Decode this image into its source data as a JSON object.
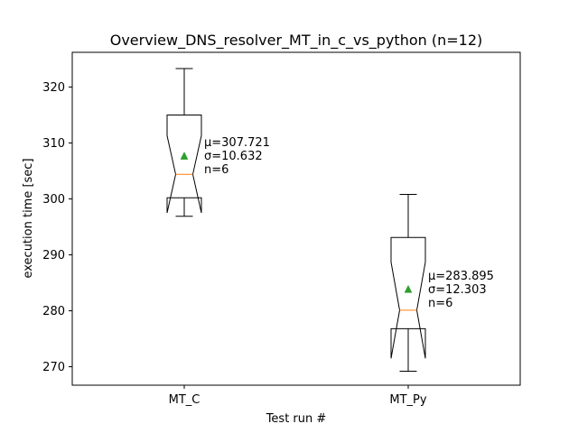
{
  "chart_data": {
    "type": "boxplot",
    "title": "Overview_DNS_resolver_MT_in_c_vs_python (n=12)",
    "xlabel": "Test run #",
    "ylabel": "execution time [sec]",
    "ylim": [
      266.7,
      326.2
    ],
    "yticks": [
      270,
      280,
      290,
      300,
      310,
      320
    ],
    "categories": [
      "MT_C",
      "MT_Py"
    ],
    "notched": true,
    "show_means": true,
    "grid": false,
    "colors": {
      "box": "#000000",
      "median": "#ff7f0e",
      "mean": "#2ca02c"
    },
    "boxes": [
      {
        "name": "MT_C",
        "whisker_low": 296.9,
        "q1": 300.2,
        "median": 304.4,
        "q3": 315.0,
        "whisker_high": 323.3,
        "notch_low": 297.5,
        "notch_high": 311.3,
        "mean": 307.721,
        "annotation": [
          "μ=307.721",
          "σ=10.632",
          "n=6"
        ]
      },
      {
        "name": "MT_Py",
        "whisker_low": 269.2,
        "q1": 276.8,
        "median": 280.1,
        "q3": 293.1,
        "whisker_high": 300.8,
        "notch_low": 271.5,
        "notch_high": 288.7,
        "mean": 283.895,
        "annotation": [
          "μ=283.895",
          "σ=12.303",
          "n=6"
        ]
      }
    ]
  }
}
